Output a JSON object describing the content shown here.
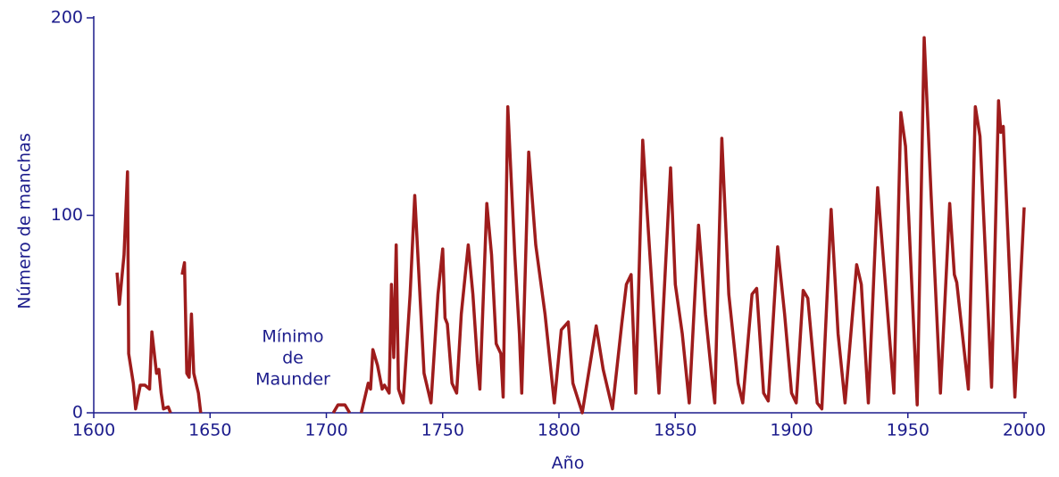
{
  "chart_data": {
    "type": "line",
    "xlabel": "Año",
    "ylabel": "Número de manchas",
    "annotation": [
      "Mínimo",
      "de",
      "Maunder"
    ],
    "color": "#9e1c1c",
    "xlim": [
      1600,
      2000
    ],
    "xticks": [
      1600,
      1650,
      1700,
      1750,
      1800,
      1850,
      1900,
      1950,
      2000
    ],
    "ylim": [
      0,
      200
    ],
    "yticks": [
      0,
      100,
      200
    ],
    "x": [
      1610,
      1611,
      1613,
      1614.5,
      1615,
      1617,
      1618,
      1620,
      1622,
      1624,
      1625,
      1627,
      1628,
      1629,
      1630,
      1632,
      1633,
      1635,
      1638,
      1639,
      1640,
      1641,
      1642,
      1643,
      1645,
      1646,
      1670,
      1703,
      1705,
      1708,
      1710,
      1712,
      1715,
      1718,
      1719,
      1720,
      1722,
      1724,
      1725,
      1727,
      1728,
      1729,
      1730,
      1731,
      1733,
      1736,
      1738,
      1740,
      1742,
      1745,
      1748,
      1750,
      1751,
      1752,
      1754,
      1756,
      1758,
      1761,
      1763,
      1765,
      1766,
      1769,
      1771,
      1773,
      1775,
      1776,
      1778,
      1781,
      1783,
      1784,
      1787,
      1790,
      1794,
      1798,
      1801,
      1804,
      1806,
      1810,
      1816,
      1819,
      1823,
      1827,
      1829,
      1831,
      1833,
      1836,
      1838,
      1841,
      1843,
      1848,
      1850,
      1853,
      1856,
      1860,
      1863,
      1866,
      1867,
      1870,
      1873,
      1877,
      1879,
      1883,
      1885,
      1888,
      1890,
      1894,
      1897,
      1900,
      1902,
      1905,
      1907,
      1911,
      1913,
      1917,
      1920,
      1923,
      1928,
      1930,
      1933,
      1937,
      1940,
      1944,
      1947,
      1949,
      1954,
      1957,
      1960,
      1964,
      1968,
      1970,
      1971,
      1976,
      1979,
      1981,
      1986,
      1989,
      1990,
      1991,
      1993,
      1996,
      2000
    ],
    "values": [
      71,
      55,
      80,
      122,
      30,
      15,
      2,
      14,
      14,
      12,
      41,
      20,
      22,
      10,
      2,
      3,
      0,
      null,
      70,
      76,
      20,
      18,
      50,
      20,
      10,
      0,
      null,
      0,
      4,
      4,
      0,
      null,
      0,
      15,
      12,
      32,
      24,
      12,
      14,
      10,
      65,
      28,
      85,
      12,
      5,
      60,
      110,
      65,
      20,
      5,
      60,
      83,
      48,
      45,
      15,
      10,
      50,
      85,
      60,
      25,
      12,
      106,
      80,
      35,
      30,
      8,
      155,
      80,
      40,
      10,
      132,
      85,
      50,
      5,
      42,
      46,
      15,
      0,
      44,
      22,
      2,
      45,
      65,
      70,
      10,
      138,
      100,
      45,
      10,
      124,
      65,
      40,
      5,
      95,
      50,
      15,
      5,
      139,
      60,
      15,
      5,
      60,
      63,
      10,
      6,
      84,
      50,
      10,
      5,
      62,
      58,
      5,
      2,
      103,
      40,
      5,
      75,
      65,
      5,
      114,
      70,
      10,
      152,
      135,
      4,
      190,
      110,
      10,
      106,
      70,
      66,
      12,
      155,
      140,
      13,
      158,
      142,
      145,
      90,
      8,
      104
    ]
  }
}
